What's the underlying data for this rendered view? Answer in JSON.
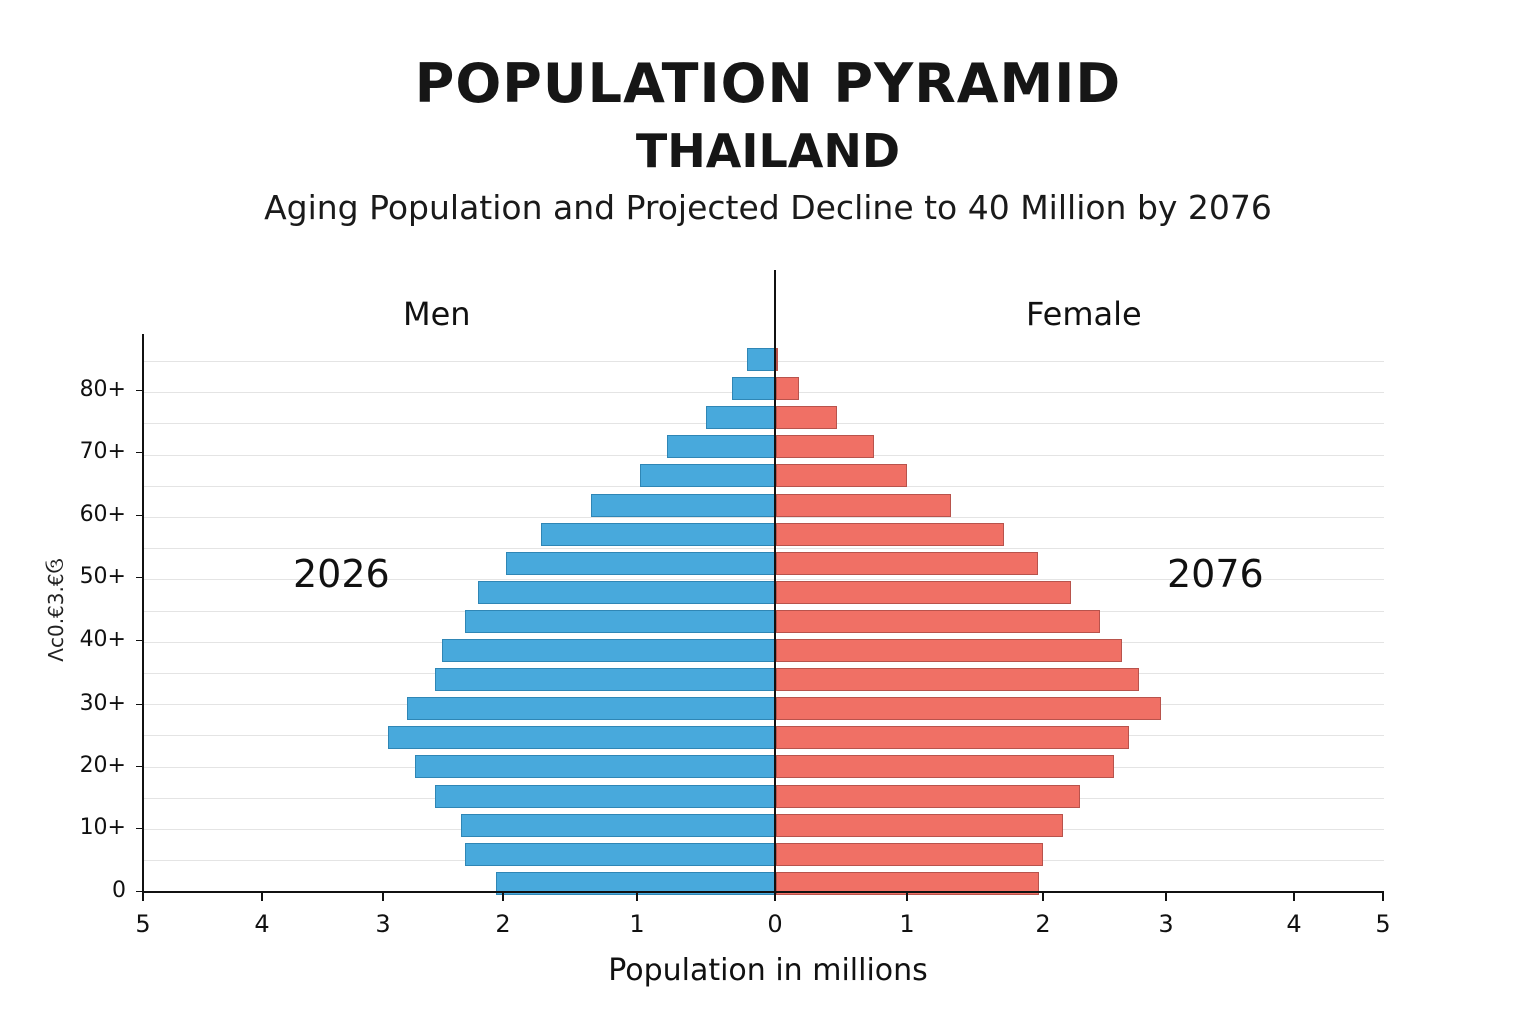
{
  "header": {
    "title": "POPULATION PYRAMID",
    "country": "THAILAND",
    "subtitle": "Aging Population and Projected Decline to 40 Million by 2076"
  },
  "labels": {
    "left_group": "Men",
    "right_group": "Female",
    "left_year": "2026",
    "right_year": "2076",
    "x_title": "Population in millions",
    "y_title": "Λc0.€3.€ઉ"
  },
  "colors": {
    "men": "#48a9dc",
    "female": "#f07065"
  },
  "chart_data": {
    "type": "bar",
    "orientation": "horizontal-pyramid",
    "title": "POPULATION PYRAMID THAILAND",
    "subtitle": "Aging Population and Projected Decline to 40 Million by 2076",
    "xlabel": "Population in millions",
    "ylabel": "Λc0.€3.€ઉ",
    "x_ticks_left": [
      "5",
      "4",
      "3",
      "2",
      "1",
      "0"
    ],
    "x_ticks_right": [
      "1",
      "2",
      "3",
      "4",
      "5"
    ],
    "y_ticks": [
      "80+",
      "70+",
      "60+",
      "50+",
      "40+",
      "30+",
      "20+",
      "10+",
      "0"
    ],
    "xlim": [
      -5,
      5
    ],
    "grid": true,
    "annotations": [
      "2026",
      "2076"
    ],
    "legend": [
      "Men",
      "Female"
    ],
    "categories_top_to_bottom": [
      "bar1",
      "bar2",
      "bar3",
      "bar4",
      "bar5",
      "bar6",
      "bar7",
      "bar8",
      "bar9",
      "bar10",
      "bar11",
      "bar12",
      "bar13",
      "bar14",
      "bar15",
      "bar16",
      "bar17",
      "bar18",
      "bar19"
    ],
    "series": [
      {
        "name": "Men",
        "side": "left",
        "values": [
          0.2,
          0.31,
          0.5,
          0.78,
          0.98,
          1.34,
          1.72,
          1.98,
          2.21,
          2.32,
          2.51,
          2.57,
          2.8,
          2.96,
          2.73,
          2.57,
          2.35,
          2.32,
          2.06
        ]
      },
      {
        "name": "Female",
        "side": "right",
        "values": [
          0.02,
          0.18,
          0.47,
          0.75,
          1.0,
          1.32,
          1.71,
          1.96,
          2.23,
          2.46,
          2.64,
          2.78,
          2.96,
          2.7,
          2.58,
          2.3,
          2.16,
          2.0,
          1.97
        ]
      }
    ]
  }
}
